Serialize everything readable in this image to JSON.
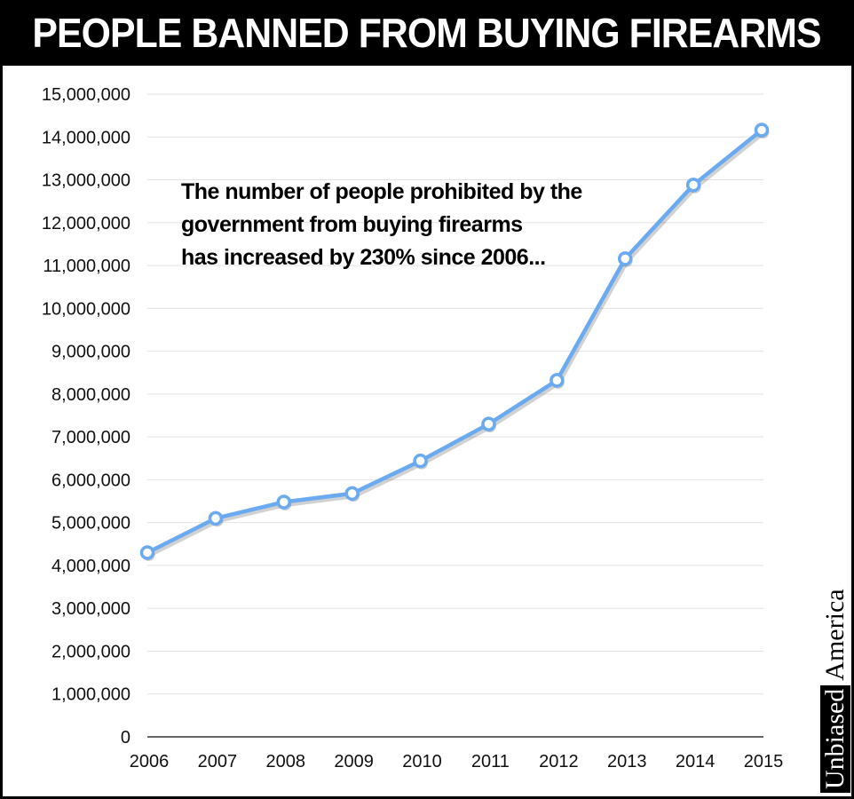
{
  "header": {
    "title": "PEOPLE BANNED FROM BUYING FIREARMS"
  },
  "annotation": {
    "lines": [
      "The number of people prohibited by the",
      "government from buying firearms",
      "has increased by 230% since 2006..."
    ]
  },
  "watermark": {
    "part1": "Unbiased",
    "part2": "America"
  },
  "colors": {
    "line": "#6aaaf0",
    "point_fill": "#ffffff",
    "grid": "#e2e2e2",
    "title_bg": "#000000"
  },
  "chart_data": {
    "type": "line",
    "title": "PEOPLE BANNED FROM BUYING FIREARMS",
    "xlabel": "",
    "ylabel": "",
    "categories": [
      "2006",
      "2007",
      "2008",
      "2009",
      "2010",
      "2011",
      "2012",
      "2013",
      "2014",
      "2015"
    ],
    "series": [
      {
        "values": [
          4300000,
          5100000,
          5480000,
          5680000,
          6440000,
          7300000,
          8320000,
          11160000,
          12880000,
          14160000
        ]
      }
    ],
    "ylim": [
      0,
      15000000
    ],
    "yticks": [
      0,
      1000000,
      2000000,
      3000000,
      4000000,
      5000000,
      6000000,
      7000000,
      8000000,
      9000000,
      10000000,
      11000000,
      12000000,
      13000000,
      14000000,
      15000000
    ],
    "ytick_labels": [
      "0",
      "1,000,000",
      "2,000,000",
      "3,000,000",
      "4,000,000",
      "5,000,000",
      "6,000,000",
      "7,000,000",
      "8,000,000",
      "9,000,000",
      "10,000,000",
      "11,000,000",
      "12,000,000",
      "13,000,000",
      "14,000,000",
      "15,000,000"
    ],
    "grid": true,
    "legend": "none"
  }
}
